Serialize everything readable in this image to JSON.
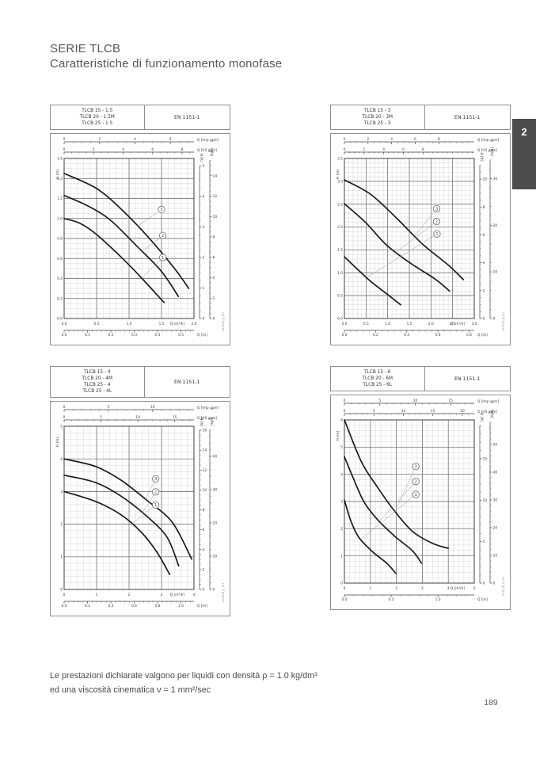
{
  "page": {
    "title": "SERIE TLCB",
    "subtitle": "Caratteristiche di funzionamento monofase",
    "footnote1": "Le prestazioni dichiarate valgono per liquidi con densità ρ = 1.0 kg/dm³",
    "footnote2": "ed una viscosità cinematica ν = 1 mm²/sec",
    "page_number": "189",
    "section_tab": "2"
  },
  "chart_data": [
    {
      "type": "line",
      "models": [
        "TLCB 15 - 1.5",
        "TLCB 20 - 1.5M",
        "TLCB 25 - 1.5"
      ],
      "standard": "EN 1151-1",
      "code": "50TLCB_A_CH",
      "x_axis": {
        "label": "Q [m³/h]",
        "max": 2.0,
        "major": 0.5,
        "minor": 0.1,
        "ticks": [
          "0.0",
          "0.5",
          "1.0",
          "1.5",
          "2.0"
        ]
      },
      "y_axis": {
        "label": "H [m]",
        "max": 1.6,
        "major": 0.2,
        "minor": 0.05,
        "ticks": [
          "0.0",
          "0.2",
          "0.4",
          "0.6",
          "0.8",
          "1.0",
          "1.2",
          "1.4",
          "1.6"
        ]
      },
      "top_scales": [
        {
          "label": "Q [Imp gpm]",
          "unit": "imp_gpm",
          "minor": 0.5,
          "ticks": [
            "0",
            "2",
            "4",
            "6"
          ]
        },
        {
          "label": "Q [US gpm]",
          "unit": "us_gpm",
          "minor": 0.5,
          "ticks": [
            "0",
            "2",
            "4",
            "6",
            "8"
          ]
        }
      ],
      "bottom_scale": {
        "label": "Q [l/s]",
        "unit": "l_s",
        "minor": 0.02,
        "ticks": [
          "0.0",
          "0.1",
          "0.2",
          "0.3",
          "0.4",
          "0.5"
        ]
      },
      "right_scales": [
        {
          "label": "H [ft]",
          "unit": "ft",
          "minor": 0.25,
          "ticks": [
            "0",
            "1",
            "2",
            "3",
            "4",
            "5"
          ]
        },
        {
          "label": "[kPa]",
          "unit": "kpa",
          "minor": 0.5,
          "ticks": [
            "0",
            "2",
            "4",
            "6",
            "8",
            "10",
            "12",
            "14"
          ]
        }
      ],
      "series": [
        {
          "name": "1",
          "points": [
            [
              0,
              1.0
            ],
            [
              0.25,
              0.95
            ],
            [
              0.5,
              0.84
            ],
            [
              0.9,
              0.6
            ],
            [
              1.2,
              0.4
            ],
            [
              1.54,
              0.16
            ]
          ]
        },
        {
          "name": "2",
          "points": [
            [
              0,
              1.23
            ],
            [
              0.35,
              1.13
            ],
            [
              0.7,
              0.99
            ],
            [
              1.11,
              0.73
            ],
            [
              1.5,
              0.47
            ],
            [
              1.76,
              0.22
            ]
          ]
        },
        {
          "name": "3",
          "points": [
            [
              0,
              1.45
            ],
            [
              0.5,
              1.3
            ],
            [
              0.9,
              1.08
            ],
            [
              1.3,
              0.81
            ],
            [
              1.7,
              0.5
            ],
            [
              1.92,
              0.3
            ]
          ]
        }
      ],
      "speed_labels": [
        {
          "label": "3",
          "cx": 1.5,
          "cy": 1.09,
          "tx": 1.12,
          "ty": 0.92
        },
        {
          "label": "2",
          "cx": 1.52,
          "cy": 0.83,
          "tx": 1.18,
          "ty": 0.66
        },
        {
          "label": "1",
          "cx": 1.52,
          "cy": 0.61,
          "tx": 1.2,
          "ty": 0.41
        }
      ]
    },
    {
      "type": "line",
      "models": [
        "TLCB 15 - 3",
        "TLCB 20 - 3M",
        "TLCB 25 - 3"
      ],
      "standard": "EN 1151-1",
      "code": "50TLCB_B_CH",
      "x_axis": {
        "label": "Q [m³/h]",
        "max": 3.0,
        "major": 0.5,
        "minor": 0.1,
        "ticks": [
          "0.0",
          "0.5",
          "1.0",
          "1.5",
          "2.0",
          "2.5",
          "3.0"
        ]
      },
      "y_axis": {
        "label": "H [m]",
        "max": 3.5,
        "major": 0.5,
        "minor": 0.1,
        "ticks": [
          "0.0",
          "0.5",
          "1.0",
          "1.5",
          "2.0",
          "2.5",
          "3.0",
          "3.5"
        ]
      },
      "top_scales": [
        {
          "label": "Q [Imp gpm]",
          "unit": "imp_gpm",
          "minor": 0.5,
          "ticks": [
            "0",
            "2",
            "4",
            "6",
            "8"
          ]
        },
        {
          "label": "Q [US gpm]",
          "unit": "us_gpm",
          "minor": 0.5,
          "ticks": [
            "0",
            "2",
            "4",
            "6",
            "8"
          ]
        }
      ],
      "bottom_scale": {
        "label": "Q [l/s]",
        "unit": "l_s",
        "minor": 0.04,
        "ticks": [
          "0.0",
          "0.2",
          "0.4",
          "0.6",
          "0.8"
        ]
      },
      "right_scales": [
        {
          "label": "H [ft]",
          "unit": "ft",
          "minor": 0.5,
          "ticks": [
            "0",
            "2",
            "4",
            "6",
            "8",
            "10"
          ]
        },
        {
          "label": "[kPa]",
          "unit": "kpa",
          "minor": 2,
          "ticks": [
            "0",
            "10",
            "20",
            "30"
          ]
        }
      ],
      "series": [
        {
          "name": "1",
          "points": [
            [
              0,
              1.35
            ],
            [
              0.31,
              1.07
            ],
            [
              0.61,
              0.81
            ],
            [
              1.03,
              0.5
            ],
            [
              1.3,
              0.3
            ]
          ]
        },
        {
          "name": "2",
          "points": [
            [
              0,
              2.51
            ],
            [
              0.49,
              2.1
            ],
            [
              0.97,
              1.61
            ],
            [
              1.51,
              1.22
            ],
            [
              2.1,
              0.86
            ],
            [
              2.43,
              0.6
            ]
          ]
        },
        {
          "name": "3",
          "points": [
            [
              0,
              3.03
            ],
            [
              0.6,
              2.72
            ],
            [
              1.2,
              2.2
            ],
            [
              1.8,
              1.63
            ],
            [
              2.4,
              1.17
            ],
            [
              2.75,
              0.85
            ]
          ]
        }
      ],
      "speed_labels": [
        {
          "label": "3",
          "cx": 2.13,
          "cy": 2.4,
          "tx": 1.62,
          "ty": 1.8
        },
        {
          "label": "2",
          "cx": 2.13,
          "cy": 2.12,
          "tx": 1.18,
          "ty": 1.44
        },
        {
          "label": "1",
          "cx": 2.14,
          "cy": 1.85,
          "tx": 0.52,
          "ty": 0.9
        }
      ]
    },
    {
      "type": "line",
      "models": [
        "TLCB 15 - 4",
        "TLCB 20 - 4M",
        "TLCB 25 - 4",
        "TLCB 25 - 4L"
      ],
      "standard": "EN 1151-1",
      "code": "50TLCB_C_CH",
      "x_axis": {
        "label": "Q [m³/h]",
        "max": 4.0,
        "major": 1,
        "minor": 0.2,
        "ticks": [
          "0",
          "1",
          "2",
          "3",
          "4"
        ]
      },
      "y_axis": {
        "label": "H [m]",
        "max": 5.0,
        "major": 1,
        "minor": 0.2,
        "ticks": [
          "0",
          "1",
          "2",
          "3",
          "4",
          "5"
        ]
      },
      "top_scales": [
        {
          "label": "Q [Imp gpm]",
          "unit": "imp_gpm",
          "minor": 1,
          "ticks": [
            "0",
            "5",
            "10"
          ]
        },
        {
          "label": "Q [US gpm]",
          "unit": "us_gpm",
          "minor": 1,
          "ticks": [
            "0",
            "5",
            "10",
            "15"
          ]
        }
      ],
      "bottom_scale": {
        "label": "Q [l/s]",
        "unit": "l_s",
        "minor": 0.04,
        "ticks": [
          "0.0",
          "0.2",
          "0.4",
          "0.6",
          "0.8",
          "1.0"
        ]
      },
      "right_scales": [
        {
          "label": "H [ft]",
          "unit": "ft",
          "minor": 0.5,
          "ticks": [
            "0",
            "2",
            "4",
            "6",
            "8",
            "10",
            "12",
            "14",
            "16"
          ]
        },
        {
          "label": "[kPa]",
          "unit": "kpa",
          "minor": 2,
          "ticks": [
            "0",
            "10",
            "20",
            "30",
            "40"
          ]
        }
      ],
      "series": [
        {
          "name": "1",
          "points": [
            [
              0,
              3.0
            ],
            [
              0.96,
              2.7
            ],
            [
              1.75,
              2.29
            ],
            [
              2.38,
              1.75
            ],
            [
              2.86,
              1.14
            ],
            [
              3.25,
              0.46
            ]
          ]
        },
        {
          "name": "2",
          "points": [
            [
              0,
              3.5
            ],
            [
              0.96,
              3.28
            ],
            [
              1.75,
              2.86
            ],
            [
              2.54,
              2.25
            ],
            [
              3.17,
              1.6
            ],
            [
              3.53,
              0.72
            ]
          ]
        },
        {
          "name": "3",
          "points": [
            [
              0,
              4.0
            ],
            [
              0.96,
              3.77
            ],
            [
              1.75,
              3.35
            ],
            [
              2.54,
              2.74
            ],
            [
              3.33,
              2.06
            ],
            [
              3.93,
              0.93
            ]
          ]
        }
      ],
      "speed_labels": [
        {
          "label": "3",
          "cx": 2.82,
          "cy": 3.39,
          "tx": 2.5,
          "ty": 2.75
        },
        {
          "label": "2",
          "cx": 2.82,
          "cy": 2.99,
          "tx": 2.4,
          "ty": 2.33
        },
        {
          "label": "1",
          "cx": 2.82,
          "cy": 2.59,
          "tx": 2.05,
          "ty": 1.98
        }
      ]
    },
    {
      "type": "line",
      "models": [
        "TLCB 15 - 6",
        "TLCB 20 - 6M",
        "TLCB 25 - 6L"
      ],
      "standard": "EN 1151-1",
      "code": "50TLCB_D_CH",
      "x_axis": {
        "label": "Q [m³/h]",
        "max": 5.0,
        "major": 1,
        "minor": 0.2,
        "ticks": [
          "0",
          "1",
          "2",
          "3",
          "4",
          "5"
        ]
      },
      "y_axis": {
        "label": "H [m]",
        "max": 6.0,
        "major": 1,
        "minor": 0.2,
        "ticks": [
          "0",
          "1",
          "2",
          "3",
          "4",
          "5",
          "6"
        ]
      },
      "top_scales": [
        {
          "label": "Q [Imp gpm]",
          "unit": "imp_gpm",
          "minor": 1,
          "ticks": [
            "0",
            "5",
            "10",
            "15"
          ]
        },
        {
          "label": "Q [US gpm]",
          "unit": "us_gpm",
          "minor": 1,
          "ticks": [
            "0",
            "5",
            "10",
            "15",
            "20"
          ]
        }
      ],
      "bottom_scale": {
        "label": "Q [l/s]",
        "unit": "l_s",
        "minor": 0.1,
        "ticks": [
          "0.0",
          "0.5",
          "1.0"
        ]
      },
      "right_scales": [
        {
          "label": "H [ft]",
          "unit": "ft",
          "minor": 1,
          "ticks": [
            "0",
            "5",
            "10",
            "15"
          ]
        },
        {
          "label": "[kPa]",
          "unit": "kpa",
          "minor": 2,
          "ticks": [
            "0",
            "10",
            "20",
            "30",
            "40",
            "50"
          ]
        }
      ],
      "series": [
        {
          "name": "1",
          "points": [
            [
              0,
              3.05
            ],
            [
              0.25,
              2.28
            ],
            [
              0.55,
              1.69
            ],
            [
              1.04,
              1.19
            ],
            [
              1.63,
              0.73
            ],
            [
              1.98,
              0.36
            ]
          ]
        },
        {
          "name": "2",
          "points": [
            [
              0,
              4.65
            ],
            [
              0.35,
              3.84
            ],
            [
              0.74,
              3.01
            ],
            [
              1.24,
              2.37
            ],
            [
              1.93,
              1.73
            ],
            [
              2.62,
              1.19
            ],
            [
              2.97,
              0.73
            ]
          ]
        },
        {
          "name": "3",
          "points": [
            [
              0,
              6.0
            ],
            [
              0.65,
              4.47
            ],
            [
              1.25,
              3.56
            ],
            [
              1.85,
              2.75
            ],
            [
              2.6,
              1.92
            ],
            [
              3.4,
              1.46
            ],
            [
              4.0,
              1.28
            ]
          ]
        }
      ],
      "speed_labels": [
        {
          "label": "3",
          "cx": 2.75,
          "cy": 4.29,
          "tx": 1.95,
          "ty": 2.62
        },
        {
          "label": "2",
          "cx": 2.75,
          "cy": 3.74,
          "tx": 1.35,
          "ty": 2.27
        },
        {
          "label": "1",
          "cx": 2.75,
          "cy": 3.26,
          "tx": 0.62,
          "ty": 1.6
        }
      ]
    }
  ]
}
